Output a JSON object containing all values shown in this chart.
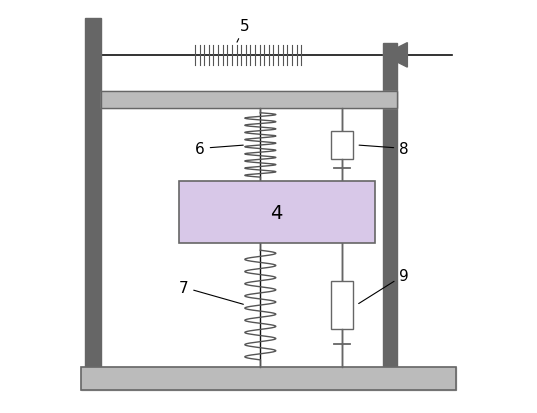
{
  "fig_width": 5.37,
  "fig_height": 4.14,
  "dpi": 100,
  "bg_color": "#ffffff",
  "dark_gray": "#666666",
  "med_gray": "#999999",
  "light_gray": "#bbbbbb",
  "mass_color": "#d8c8e8",
  "spring_color": "#555555",
  "fiber_color": "#111111",
  "frame_lw": 2.5,
  "bar_color": "#aaaaaa",
  "post_color": "#666666"
}
